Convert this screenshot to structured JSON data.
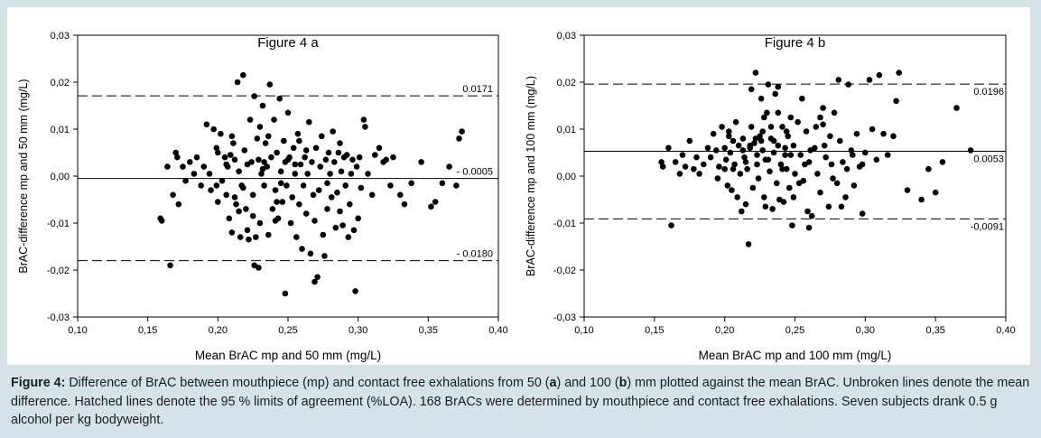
{
  "caption": {
    "lead": "Figure 4:",
    "part1": " Difference of BrAC between mouthpiece (mp) and contact free exhalations from 50 (",
    "a": "a",
    "part2": ") and 100 (",
    "b": "b",
    "part3": ") mm plotted against the mean BrAC. Unbroken lines denote the mean difference. Hatched lines denote the 95 % limits of agreement (%LOA). 168 BrACs were determined by mouthpiece and contact free exhalations. Seven subjects drank 0.5 g alcohol per kg bodyweight."
  },
  "colors": {
    "page_bg": "#d5e3e8",
    "panel_bg": "#ffffff",
    "ink": "#000000"
  },
  "chart_data": [
    {
      "type": "scatter",
      "title": "Figure 4 a",
      "xlabel": "Mean BrAC mp and 50 mm (mg/L)",
      "ylabel": "BrAC-difference mp and 50 mm (mg/L)",
      "xlim": [
        0.1,
        0.4
      ],
      "ylim": [
        -0.03,
        0.03
      ],
      "xticks": [
        "0,10",
        "0,15",
        "0,20",
        "0,25",
        "0,30",
        "0,35",
        "0,40"
      ],
      "yticks": [
        "-0,03",
        "-0,02",
        "-0,01",
        "0,00",
        "0,01",
        "0,02",
        "0,03"
      ],
      "lines": [
        {
          "y": 0.0171,
          "label": "0.0171",
          "style": "dashed"
        },
        {
          "y": -0.0005,
          "label": "- 0.0005",
          "style": "solid"
        },
        {
          "y": -0.018,
          "label": "- 0.0180",
          "style": "dashed"
        }
      ],
      "points": [
        [
          0.159,
          -0.009
        ],
        [
          0.16,
          -0.0095
        ],
        [
          0.164,
          0.002
        ],
        [
          0.166,
          -0.019
        ],
        [
          0.168,
          -0.004
        ],
        [
          0.17,
          0.005
        ],
        [
          0.171,
          0.004
        ],
        [
          0.172,
          -0.006
        ],
        [
          0.175,
          0.002
        ],
        [
          0.177,
          -0.001
        ],
        [
          0.18,
          0.003
        ],
        [
          0.183,
          0.0005
        ],
        [
          0.185,
          0.004
        ],
        [
          0.188,
          -0.002
        ],
        [
          0.19,
          0.002
        ],
        [
          0.192,
          0.011
        ],
        [
          0.194,
          0.0005
        ],
        [
          0.195,
          -0.003
        ],
        [
          0.197,
          0.01
        ],
        [
          0.199,
          -0.002
        ],
        [
          0.2,
          0.005
        ],
        [
          0.202,
          0.009
        ],
        [
          0.203,
          -0.001
        ],
        [
          0.205,
          0.004
        ],
        [
          0.206,
          -0.004
        ],
        [
          0.207,
          0.002
        ],
        [
          0.208,
          -0.009
        ],
        [
          0.209,
          0.0045
        ],
        [
          0.21,
          -0.012
        ],
        [
          0.211,
          0.007
        ],
        [
          0.212,
          0.0035
        ],
        [
          0.213,
          -0.006
        ],
        [
          0.214,
          0.02
        ],
        [
          0.215,
          0.001
        ],
        [
          0.216,
          -0.013
        ],
        [
          0.217,
          -0.002
        ],
        [
          0.218,
          0.0215
        ],
        [
          0.219,
          0.0055
        ],
        [
          0.22,
          -0.007
        ],
        [
          0.221,
          0.0025
        ],
        [
          0.222,
          -0.0135
        ],
        [
          0.223,
          0.012
        ],
        [
          0.224,
          0.003
        ],
        [
          0.225,
          -0.004
        ],
        [
          0.226,
          0.017
        ],
        [
          0.227,
          -0.013
        ],
        [
          0.228,
          0.008
        ],
        [
          0.229,
          0.0035
        ],
        [
          0.23,
          -0.01
        ],
        [
          0.231,
          0.0005
        ],
        [
          0.232,
          0.015
        ],
        [
          0.233,
          -0.002
        ],
        [
          0.234,
          0.007
        ],
        [
          0.235,
          0.002
        ],
        [
          0.236,
          -0.0125
        ],
        [
          0.237,
          0.0195
        ],
        [
          0.238,
          0.004
        ],
        [
          0.239,
          -0.007
        ],
        [
          0.24,
          0.012
        ],
        [
          0.241,
          -0.003
        ],
        [
          0.242,
          0.005
        ],
        [
          0.243,
          -0.009
        ],
        [
          0.244,
          0.0165
        ],
        [
          0.245,
          0.001
        ],
        [
          0.246,
          -0.0055
        ],
        [
          0.247,
          0.0075
        ],
        [
          0.248,
          0.003
        ],
        [
          0.249,
          -0.002
        ],
        [
          0.25,
          0.0135
        ],
        [
          0.251,
          0.004
        ],
        [
          0.252,
          -0.01
        ],
        [
          0.253,
          -0.0045
        ],
        [
          0.254,
          0.006
        ],
        [
          0.255,
          0.0005
        ],
        [
          0.256,
          -0.013
        ],
        [
          0.257,
          0.009
        ],
        [
          0.258,
          -0.006
        ],
        [
          0.259,
          0.0025
        ],
        [
          0.26,
          -0.0155
        ],
        [
          0.261,
          -0.002
        ],
        [
          0.262,
          0.004
        ],
        [
          0.263,
          -0.008
        ],
        [
          0.264,
          0.0005
        ],
        [
          0.265,
          0.0115
        ],
        [
          0.266,
          -0.0165
        ],
        [
          0.267,
          0.003
        ],
        [
          0.268,
          -0.004
        ],
        [
          0.269,
          -0.0095
        ],
        [
          0.27,
          0.006
        ],
        [
          0.271,
          -0.0215
        ],
        [
          0.272,
          -0.003
        ],
        [
          0.273,
          0.002
        ],
        [
          0.274,
          0.0085
        ],
        [
          0.275,
          -0.0125
        ],
        [
          0.276,
          -0.017
        ],
        [
          0.277,
          0.0035
        ],
        [
          0.278,
          -0.007
        ],
        [
          0.279,
          0.005
        ],
        [
          0.28,
          0.0005
        ],
        [
          0.281,
          -0.0045
        ],
        [
          0.282,
          0.0095
        ],
        [
          0.283,
          0.003
        ],
        [
          0.284,
          -0.011
        ],
        [
          0.285,
          -0.0035
        ],
        [
          0.286,
          0.005
        ],
        [
          0.287,
          -0.0075
        ],
        [
          0.288,
          0.001
        ],
        [
          0.289,
          -0.0105
        ],
        [
          0.29,
          0.004
        ],
        [
          0.291,
          -0.002
        ],
        [
          0.292,
          0.0045
        ],
        [
          0.293,
          -0.013
        ],
        [
          0.294,
          -0.006
        ],
        [
          0.295,
          0.0005
        ],
        [
          0.296,
          0.0035
        ],
        [
          0.297,
          -0.0115
        ],
        [
          0.298,
          -0.0245
        ],
        [
          0.299,
          0.002
        ],
        [
          0.3,
          -0.009
        ],
        [
          0.301,
          0.004
        ],
        [
          0.302,
          -0.0025
        ],
        [
          0.304,
          0.012
        ],
        [
          0.305,
          0.0105
        ],
        [
          0.307,
          0.0005
        ],
        [
          0.31,
          -0.004
        ],
        [
          0.312,
          0.0045
        ],
        [
          0.315,
          0.006
        ],
        [
          0.318,
          0.003
        ],
        [
          0.32,
          0.0035
        ],
        [
          0.323,
          -0.002
        ],
        [
          0.325,
          0.004
        ],
        [
          0.33,
          -0.004
        ],
        [
          0.333,
          -0.006
        ],
        [
          0.338,
          -0.0015
        ],
        [
          0.345,
          0.003
        ],
        [
          0.352,
          -0.0065
        ],
        [
          0.355,
          -0.0055
        ],
        [
          0.36,
          -0.0015
        ],
        [
          0.365,
          0.002
        ],
        [
          0.37,
          -0.002
        ],
        [
          0.372,
          0.008
        ],
        [
          0.374,
          0.0095
        ],
        [
          0.2,
          -0.0055
        ],
        [
          0.221,
          -0.0115
        ],
        [
          0.23,
          0.0105
        ],
        [
          0.241,
          -0.0095
        ],
        [
          0.226,
          -0.019
        ],
        [
          0.229,
          -0.0195
        ],
        [
          0.248,
          -0.025
        ],
        [
          0.269,
          -0.0225
        ],
        [
          0.21,
          0.0085
        ],
        [
          0.199,
          0.006
        ],
        [
          0.215,
          -0.0075
        ],
        [
          0.225,
          -0.0085
        ],
        [
          0.233,
          0.003
        ],
        [
          0.258,
          0.0075
        ],
        [
          0.212,
          -0.0045
        ],
        [
          0.236,
          0.0085
        ],
        [
          0.263,
          0.0055
        ],
        [
          0.287,
          0.007
        ],
        [
          0.245,
          -0.0015
        ],
        [
          0.255,
          0.0025
        ],
        [
          0.218,
          -0.0025
        ],
        [
          0.232,
          0.0015
        ],
        [
          0.278,
          -0.0015
        ],
        [
          0.25,
          0.0035
        ],
        [
          0.242,
          -0.0055
        ],
        [
          0.206,
          0.0025
        ]
      ]
    },
    {
      "type": "scatter",
      "title": "Figure 4 b",
      "xlabel": "Mean BrAC mp and 100 mm (mg/L)",
      "ylabel": "BrAC-difference mp and 100 mm (mg/L)",
      "xlim": [
        0.1,
        0.4
      ],
      "ylim": [
        -0.03,
        0.03
      ],
      "xticks": [
        "0,10",
        "0,15",
        "0,20",
        "0,25",
        "0,30",
        "0,35",
        "0,40"
      ],
      "yticks": [
        "-0,03",
        "-0,02",
        "-0,01",
        "0,00",
        "0,01",
        "0,02",
        "0,03"
      ],
      "lines": [
        {
          "y": 0.0196,
          "label": "0.0196",
          "style": "dashed"
        },
        {
          "y": 0.0053,
          "label": "0.0053",
          "style": "solid"
        },
        {
          "y": -0.0091,
          "label": "-0,0091",
          "style": "dashed"
        }
      ],
      "points": [
        [
          0.155,
          0.003
        ],
        [
          0.156,
          0.002
        ],
        [
          0.16,
          0.006
        ],
        [
          0.162,
          -0.0105
        ],
        [
          0.165,
          0.003
        ],
        [
          0.168,
          0.0005
        ],
        [
          0.17,
          0.0045
        ],
        [
          0.172,
          0.002
        ],
        [
          0.175,
          0.0075
        ],
        [
          0.178,
          0.0015
        ],
        [
          0.18,
          0.004
        ],
        [
          0.182,
          0.0005
        ],
        [
          0.185,
          0.0025
        ],
        [
          0.188,
          0.006
        ],
        [
          0.19,
          0.004
        ],
        [
          0.192,
          0.009
        ],
        [
          0.194,
          0.0055
        ],
        [
          0.196,
          0.002
        ],
        [
          0.198,
          0.0105
        ],
        [
          0.2,
          0.006
        ],
        [
          0.201,
          0.0035
        ],
        [
          0.202,
          -0.002
        ],
        [
          0.203,
          0.0085
        ],
        [
          0.204,
          0.005
        ],
        [
          0.205,
          -0.003
        ],
        [
          0.206,
          0.0075
        ],
        [
          0.207,
          0.0025
        ],
        [
          0.208,
          0.0115
        ],
        [
          0.209,
          -0.0045
        ],
        [
          0.21,
          0.0065
        ],
        [
          0.211,
          0.0005
        ],
        [
          0.212,
          -0.0075
        ],
        [
          0.213,
          0.008
        ],
        [
          0.214,
          0.004
        ],
        [
          0.215,
          -0.006
        ],
        [
          0.216,
          0.0015
        ],
        [
          0.217,
          -0.0145
        ],
        [
          0.218,
          0.006
        ],
        [
          0.219,
          0.0185
        ],
        [
          0.22,
          -0.0025
        ],
        [
          0.221,
          0.007
        ],
        [
          0.222,
          0.022
        ],
        [
          0.223,
          0.0045
        ],
        [
          0.224,
          -0.0005
        ],
        [
          0.225,
          0.0085
        ],
        [
          0.226,
          0.0165
        ],
        [
          0.227,
          0.0055
        ],
        [
          0.228,
          -0.0045
        ],
        [
          0.229,
          0.0035
        ],
        [
          0.23,
          0.0135
        ],
        [
          0.231,
          0.0195
        ],
        [
          0.232,
          0.001
        ],
        [
          0.233,
          0.008
        ],
        [
          0.234,
          -0.007
        ],
        [
          0.235,
          0.005
        ],
        [
          0.236,
          0.0175
        ],
        [
          0.237,
          -0.0015
        ],
        [
          0.238,
          0.0065
        ],
        [
          0.239,
          -0.005
        ],
        [
          0.24,
          0.0025
        ],
        [
          0.241,
          0.0105
        ],
        [
          0.242,
          -0.0055
        ],
        [
          0.243,
          0.006
        ],
        [
          0.244,
          0.0015
        ],
        [
          0.245,
          0.0085
        ],
        [
          0.246,
          -0.0025
        ],
        [
          0.247,
          0.0045
        ],
        [
          0.248,
          -0.0105
        ],
        [
          0.249,
          0.0065
        ],
        [
          0.25,
          0.0005
        ],
        [
          0.252,
          0.0115
        ],
        [
          0.254,
          0.0045
        ],
        [
          0.256,
          -0.001
        ],
        [
          0.258,
          0.0095
        ],
        [
          0.26,
          0.003
        ],
        [
          0.262,
          -0.0085
        ],
        [
          0.264,
          0.006
        ],
        [
          0.266,
          0.0005
        ],
        [
          0.268,
          -0.0035
        ],
        [
          0.27,
          0.011
        ],
        [
          0.272,
          0.004
        ],
        [
          0.274,
          -0.0065
        ],
        [
          0.276,
          0.0025
        ],
        [
          0.278,
          0.0135
        ],
        [
          0.28,
          -0.0015
        ],
        [
          0.282,
          0.0075
        ],
        [
          0.284,
          0.003
        ],
        [
          0.286,
          -0.0045
        ],
        [
          0.288,
          0.0195
        ],
        [
          0.29,
          0.0055
        ],
        [
          0.292,
          -0.002
        ],
        [
          0.294,
          0.009
        ],
        [
          0.296,
          0.002
        ],
        [
          0.298,
          -0.008
        ],
        [
          0.3,
          0.005
        ],
        [
          0.303,
          0.0205
        ],
        [
          0.305,
          0.01
        ],
        [
          0.308,
          0.0035
        ],
        [
          0.31,
          0.0215
        ],
        [
          0.313,
          0.009
        ],
        [
          0.316,
          0.0045
        ],
        [
          0.32,
          0.0085
        ],
        [
          0.322,
          0.016
        ],
        [
          0.324,
          0.022
        ],
        [
          0.33,
          -0.003
        ],
        [
          0.34,
          -0.005
        ],
        [
          0.345,
          0.0015
        ],
        [
          0.35,
          -0.0035
        ],
        [
          0.355,
          0.003
        ],
        [
          0.365,
          0.0145
        ],
        [
          0.375,
          0.0055
        ],
        [
          0.222,
          0.008
        ],
        [
          0.218,
          0.0065
        ],
        [
          0.226,
          0.0075
        ],
        [
          0.233,
          0.0105
        ],
        [
          0.241,
          0.0015
        ],
        [
          0.249,
          -0.0045
        ],
        [
          0.227,
          0.0095
        ],
        [
          0.215,
          0.003
        ],
        [
          0.231,
          0.0035
        ],
        [
          0.244,
          0.0095
        ],
        [
          0.257,
          0.0025
        ],
        [
          0.265,
          0.0105
        ],
        [
          0.238,
          0.0135
        ],
        [
          0.219,
          0.0105
        ],
        [
          0.206,
          0.0015
        ],
        [
          0.2,
          0.0015
        ],
        [
          0.195,
          -0.0005
        ],
        [
          0.229,
          -0.0065
        ],
        [
          0.253,
          -0.0015
        ],
        [
          0.261,
          0.0055
        ],
        [
          0.271,
          0.0065
        ],
        [
          0.283,
          -0.0065
        ],
        [
          0.287,
          0.0015
        ],
        [
          0.275,
          0.0085
        ],
        [
          0.223,
          0.0025
        ],
        [
          0.235,
          0.0075
        ],
        [
          0.247,
          0.0125
        ],
        [
          0.213,
          0.0055
        ],
        [
          0.203,
          0.0095
        ],
        [
          0.259,
          -0.0075
        ],
        [
          0.268,
          0.0125
        ],
        [
          0.277,
          -0.0005
        ],
        [
          0.291,
          0.0045
        ],
        [
          0.298,
          0.0025
        ],
        [
          0.26,
          -0.011
        ],
        [
          0.255,
          0.0165
        ],
        [
          0.238,
          0.019
        ],
        [
          0.281,
          0.0205
        ],
        [
          0.27,
          0.0145
        ],
        [
          0.228,
          0.0125
        ],
        [
          0.243,
          0.0045
        ]
      ]
    }
  ]
}
